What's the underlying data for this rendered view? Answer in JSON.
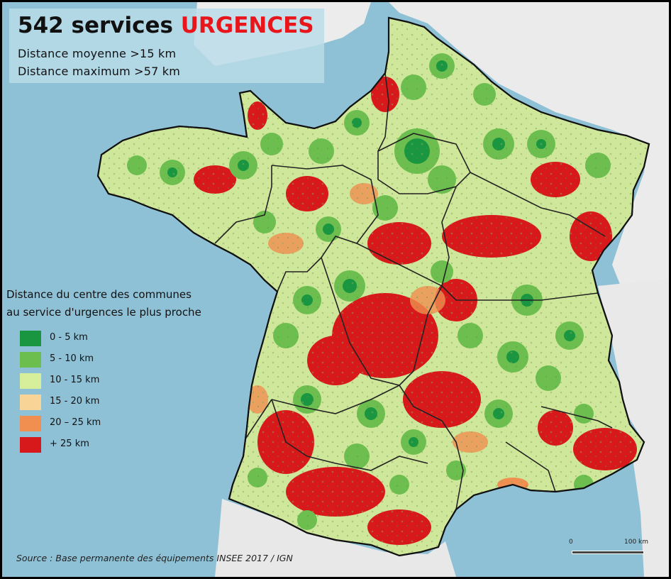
{
  "title": {
    "count": "542 services",
    "highlight": "URGENCES",
    "subtitle_1": "Distance moyenne >15 km",
    "subtitle_2": "Distance maximum >57 km"
  },
  "legend": {
    "title_line_1": "Distance du centre des communes",
    "title_line_2": "au service d'urgences le plus proche",
    "items": [
      {
        "label": "0 - 5 km",
        "color": "#1a9641"
      },
      {
        "label": "5 - 10 km",
        "color": "#6cbf4f"
      },
      {
        "label": "10 - 15 km",
        "color": "#d7ee9a"
      },
      {
        "label": "15 - 20 km",
        "color": "#f8d597"
      },
      {
        "label": "20 – 25 km",
        "color": "#f08f50"
      },
      {
        "label": "+ 25 km",
        "color": "#d7191c"
      }
    ]
  },
  "source": "Source : Base permanente des équipements INSEE 2017 / IGN",
  "scale": {
    "zero": "0",
    "max": "100 km"
  },
  "colors": {
    "sea": "#8fc1d6",
    "land_neighbors": "#ededed",
    "near": "#1a9641",
    "far": "#d7191c"
  }
}
